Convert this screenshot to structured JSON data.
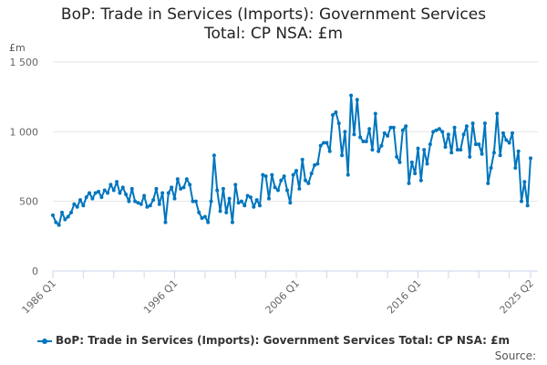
{
  "chart_data": {
    "type": "line",
    "title_line1": "BoP: Trade in Services (Imports): Government Services",
    "title_line2": "Total: CP NSA: £m",
    "ylabel": "£m",
    "ylim": [
      0,
      1500
    ],
    "yticks": [
      0,
      500,
      1000,
      1500
    ],
    "ytick_labels": [
      "0",
      "500",
      "1 000",
      "1 500"
    ],
    "x_start": "1986 Q1",
    "x_end": "2025 Q2",
    "xtick_labels": [
      "1986 Q1",
      "1996 Q1",
      "2006 Q1",
      "2016 Q1",
      "2025 Q2"
    ],
    "grid": true,
    "legend": "bottom",
    "series": [
      {
        "name": "BoP: Trade in Services (Imports): Government Services Total: CP NSA: £m",
        "color": "#0075be",
        "values": [
          400,
          350,
          330,
          420,
          370,
          390,
          420,
          480,
          460,
          510,
          470,
          530,
          560,
          520,
          560,
          570,
          530,
          580,
          560,
          620,
          580,
          640,
          560,
          600,
          550,
          500,
          590,
          500,
          490,
          480,
          540,
          460,
          470,
          510,
          590,
          480,
          560,
          350,
          560,
          600,
          520,
          660,
          590,
          600,
          660,
          620,
          500,
          500,
          420,
          380,
          390,
          350,
          500,
          830,
          580,
          430,
          590,
          420,
          520,
          350,
          620,
          490,
          500,
          470,
          540,
          530,
          460,
          510,
          470,
          690,
          680,
          520,
          690,
          600,
          580,
          650,
          680,
          580,
          490,
          690,
          720,
          590,
          800,
          650,
          630,
          700,
          760,
          770,
          900,
          920,
          920,
          860,
          1120,
          1140,
          1060,
          830,
          1000,
          690,
          1260,
          980,
          1230,
          960,
          930,
          930,
          1020,
          870,
          1130,
          860,
          900,
          990,
          970,
          1030,
          1030,
          820,
          780,
          1010,
          1040,
          630,
          780,
          700,
          880,
          650,
          870,
          770,
          910,
          1000,
          1010,
          1020,
          1000,
          890,
          980,
          850,
          1030,
          870,
          870,
          980,
          1040,
          820,
          1060,
          910,
          910,
          840,
          1060,
          630,
          740,
          850,
          1130,
          830,
          990,
          940,
          920,
          990,
          740,
          860,
          500,
          640,
          470,
          810
        ]
      }
    ],
    "source_label": "Source:"
  }
}
